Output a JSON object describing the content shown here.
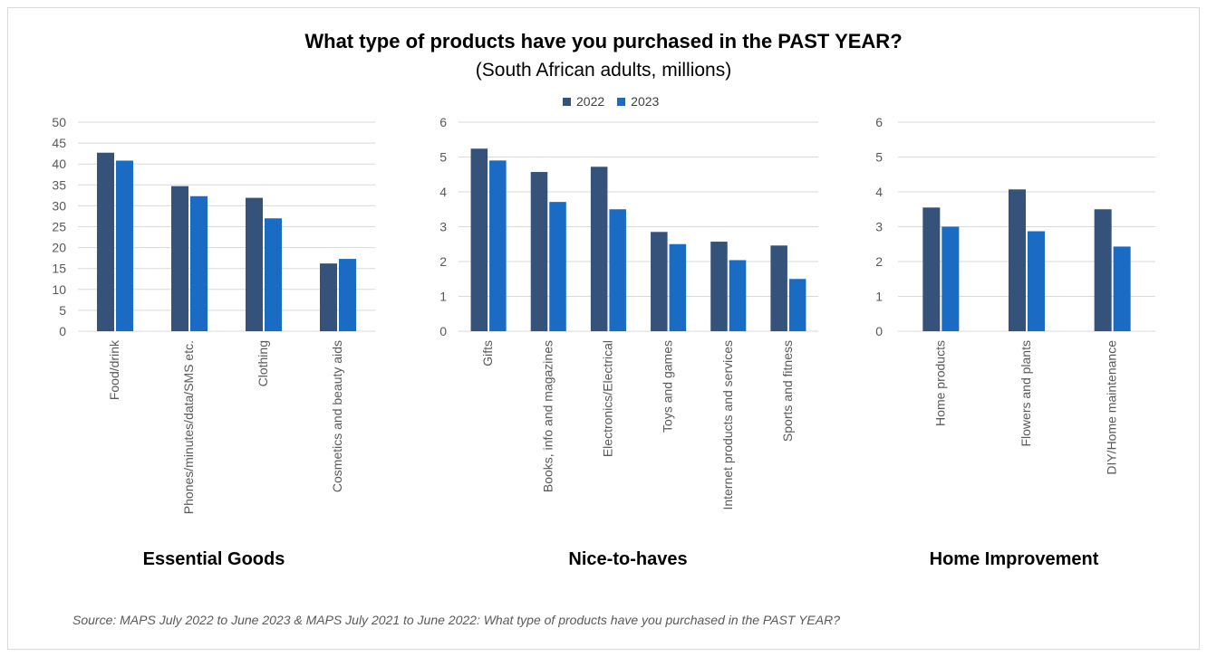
{
  "title": "What type of products have you purchased in the PAST YEAR?",
  "subtitle": "(South African adults, millions)",
  "legend": {
    "series_2022": "2022",
    "series_2023": "2023"
  },
  "colors": {
    "s2022": "#34527a",
    "s2023": "#1a6bc4",
    "grid": "#d9d9d9",
    "text": "#595959"
  },
  "source": "Source:  MAPS July 2022 to June 2023 & MAPS July 2021 to June 2022: What type of products have you purchased in the PAST YEAR?",
  "chart_data": [
    {
      "type": "bar",
      "title": "Essential Goods",
      "categories": [
        "Food/drink",
        "Phones/minutes/data/SMS etc.",
        "Clothing",
        "Cosmetics and beauty aids"
      ],
      "series": [
        {
          "name": "2022",
          "values": [
            42.7,
            34.7,
            31.9,
            16.2
          ]
        },
        {
          "name": "2023",
          "values": [
            40.8,
            32.3,
            27.0,
            17.3
          ]
        }
      ],
      "ylim": [
        0,
        50
      ],
      "yticks": [
        0,
        5,
        10,
        15,
        20,
        25,
        30,
        35,
        40,
        45,
        50
      ],
      "grid": true
    },
    {
      "type": "bar",
      "title": "Nice-to-haves",
      "categories": [
        "Gifts",
        "Books, info and magazines",
        "Electronics/Electrical",
        "Toys and games",
        "Internet products and services",
        "Sports and fitness"
      ],
      "series": [
        {
          "name": "2022",
          "values": [
            5.24,
            4.57,
            4.72,
            2.85,
            2.57,
            2.46
          ]
        },
        {
          "name": "2023",
          "values": [
            4.9,
            3.71,
            3.5,
            2.5,
            2.04,
            1.5
          ]
        }
      ],
      "ylim": [
        0,
        6
      ],
      "yticks": [
        0,
        1,
        2,
        3,
        4,
        5,
        6
      ],
      "grid": true
    },
    {
      "type": "bar",
      "title": "Home Improvement",
      "categories": [
        "Home products",
        "Flowers and plants",
        "DIY/Home maintenance"
      ],
      "series": [
        {
          "name": "2022",
          "values": [
            3.55,
            4.07,
            3.5
          ]
        },
        {
          "name": "2023",
          "values": [
            3.0,
            2.87,
            2.43
          ]
        }
      ],
      "ylim": [
        0,
        6
      ],
      "yticks": [
        0,
        1,
        2,
        3,
        4,
        5,
        6
      ],
      "grid": true
    }
  ]
}
